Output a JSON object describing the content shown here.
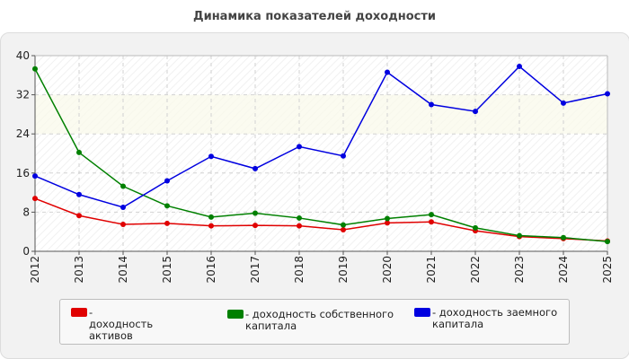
{
  "chart_data": {
    "type": "line",
    "title": "Динамика показателей доходности",
    "xlabel": "",
    "ylabel": "",
    "x": [
      "2012",
      "2013",
      "2014",
      "2015",
      "2016",
      "2017",
      "2018",
      "2019",
      "2020",
      "2021",
      "2022",
      "2023",
      "2024",
      "2025"
    ],
    "ylim": [
      0,
      40
    ],
    "yticks": [
      0,
      8,
      16,
      24,
      32,
      40
    ],
    "grid": true,
    "legend_position": "bottom",
    "series": [
      {
        "name": "- доходность активов",
        "color": "#e00000",
        "values": [
          10.8,
          7.3,
          5.5,
          5.7,
          5.2,
          5.3,
          5.2,
          4.4,
          5.8,
          6.0,
          4.2,
          3.0,
          2.6,
          2.1
        ]
      },
      {
        "name": "- доходность собственного капитала",
        "color": "#008000",
        "values": [
          37.3,
          20.2,
          13.3,
          9.3,
          7.0,
          7.8,
          6.8,
          5.4,
          6.7,
          7.5,
          4.8,
          3.2,
          2.8,
          2.0
        ]
      },
      {
        "name": "- доходность заемного капитала",
        "color": "#0000e0",
        "values": [
          15.4,
          11.6,
          9.0,
          14.4,
          19.4,
          16.9,
          21.4,
          19.5,
          36.6,
          30.0,
          28.6,
          37.8,
          30.3,
          32.2
        ]
      }
    ]
  },
  "legend": {
    "item1": "- доходность активов",
    "item2_line1": "- доходность собственного",
    "item2_line2": "капитала",
    "item3_line1": "- доходность заемного",
    "item3_line2": "капитала"
  }
}
